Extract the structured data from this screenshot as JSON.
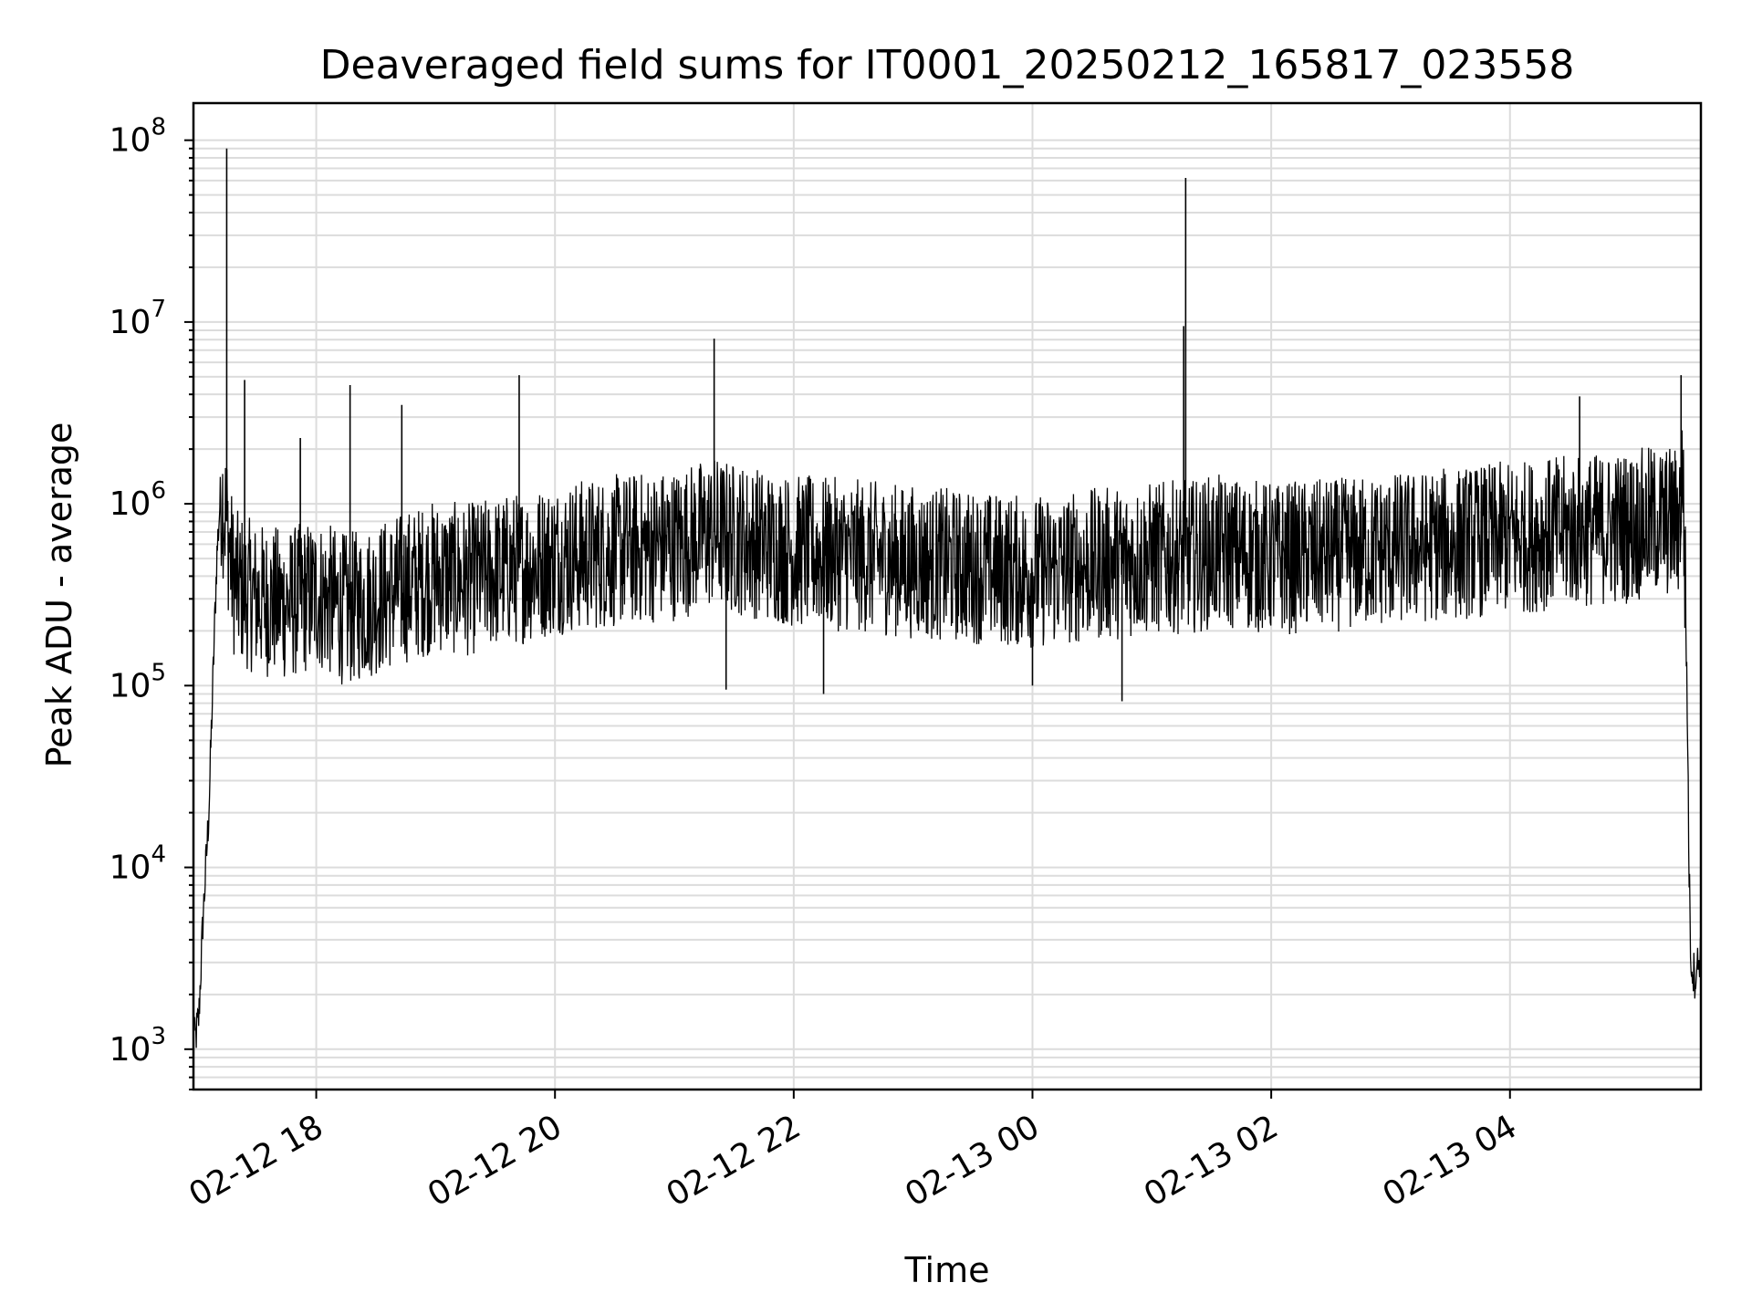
{
  "chart_data": {
    "type": "line",
    "title": "Deaveraged field sums for IT0001_20250212_165817_023558",
    "xlabel": "Time",
    "ylabel": "Peak ADU - average",
    "yscale": "log",
    "ylim": [
      600,
      160000000
    ],
    "xlim": [
      "2025-02-12 16:58:17",
      "2025-02-13 05:35:58"
    ],
    "grid": true,
    "x_ticks": [
      {
        "value": "2025-02-12 18:00",
        "label": "02-12 18"
      },
      {
        "value": "2025-02-12 20:00",
        "label": "02-12 20"
      },
      {
        "value": "2025-02-12 22:00",
        "label": "02-12 22"
      },
      {
        "value": "2025-02-13 00:00",
        "label": "02-13 00"
      },
      {
        "value": "2025-02-13 02:00",
        "label": "02-13 02"
      },
      {
        "value": "2025-02-13 04:00",
        "label": "02-13 04"
      }
    ],
    "y_ticks": [
      {
        "value": 1000,
        "base": "10",
        "exp": "3"
      },
      {
        "value": 10000,
        "base": "10",
        "exp": "4"
      },
      {
        "value": 100000,
        "base": "10",
        "exp": "5"
      },
      {
        "value": 1000000,
        "base": "10",
        "exp": "6"
      },
      {
        "value": 10000000,
        "base": "10",
        "exp": "7"
      },
      {
        "value": 100000000,
        "base": "10",
        "exp": "8"
      }
    ],
    "series": [
      {
        "color": "#000000",
        "x": [
          "2025-02-12 16:58:17",
          "2025-02-12 16:59:00",
          "2025-02-12 17:01:00",
          "2025-02-12 17:03:00",
          "2025-02-12 17:06:00",
          "2025-02-12 17:08:00",
          "2025-02-12 17:10:00",
          "2025-02-12 17:12:00",
          "2025-02-12 17:15:00",
          "2025-02-12 17:18:00",
          "2025-02-12 17:20:00",
          "2025-02-12 17:30:00",
          "2025-02-12 17:45:00",
          "2025-02-12 18:00:00",
          "2025-02-12 18:15:00",
          "2025-02-12 18:30:00",
          "2025-02-12 18:45:00",
          "2025-02-12 19:00:00",
          "2025-02-12 19:15:00",
          "2025-02-12 19:30:00",
          "2025-02-12 19:45:00",
          "2025-02-12 20:00:00",
          "2025-02-12 20:30:00",
          "2025-02-12 21:00:00",
          "2025-02-12 21:20:00",
          "2025-02-12 21:30:00",
          "2025-02-12 21:45:00",
          "2025-02-12 22:00:00",
          "2025-02-12 22:30:00",
          "2025-02-12 23:00:00",
          "2025-02-12 23:30:00",
          "2025-02-13 00:00:00",
          "2025-02-13 00:30:00",
          "2025-02-13 01:00:00",
          "2025-02-13 01:25:00",
          "2025-02-13 01:30:00",
          "2025-02-13 01:45:00",
          "2025-02-13 02:00:00",
          "2025-02-13 02:30:00",
          "2025-02-13 03:00:00",
          "2025-02-13 03:30:00",
          "2025-02-13 04:00:00",
          "2025-02-13 04:30:00",
          "2025-02-13 05:00:00",
          "2025-02-13 05:15:00",
          "2025-02-13 05:25:00",
          "2025-02-13 05:27:00",
          "2025-02-13 05:29:00",
          "2025-02-13 05:30:00",
          "2025-02-13 05:31:00",
          "2025-02-13 05:33:00",
          "2025-02-13 05:35:58"
        ],
        "values": [
          2000,
          1100,
          1500,
          5000,
          20000,
          100000,
          500000,
          1200000,
          800000,
          400000,
          350000,
          300000,
          280000,
          320000,
          260000,
          300000,
          350000,
          400000,
          380000,
          420000,
          450000,
          500000,
          550000,
          600000,
          700000,
          650000,
          600000,
          550000,
          520000,
          480000,
          450000,
          420000,
          460000,
          500000,
          520000,
          550000,
          530000,
          500000,
          520000,
          560000,
          600000,
          650000,
          700000,
          750000,
          800000,
          800000,
          1500000,
          100000,
          10000,
          3000,
          2500,
          3500
        ]
      }
    ],
    "spikes": [
      {
        "x": "2025-02-12 17:15:00",
        "y": 90000000
      },
      {
        "x": "2025-02-12 17:24:00",
        "y": 4800000
      },
      {
        "x": "2025-02-12 17:52:00",
        "y": 2300000
      },
      {
        "x": "2025-02-12 18:17:00",
        "y": 4500000
      },
      {
        "x": "2025-02-12 18:43:00",
        "y": 3500000
      },
      {
        "x": "2025-02-12 19:42:00",
        "y": 5100000
      },
      {
        "x": "2025-02-12 21:20:00",
        "y": 8100000
      },
      {
        "x": "2025-02-13 01:17:00",
        "y": 62000000
      },
      {
        "x": "2025-02-13 01:16:00",
        "y": 9500000
      },
      {
        "x": "2025-02-13 04:35:00",
        "y": 3900000
      },
      {
        "x": "2025-02-13 05:26:00",
        "y": 5100000
      }
    ],
    "dips": [
      {
        "x": "2025-02-12 21:26:00",
        "y": 95000
      },
      {
        "x": "2025-02-12 22:15:00",
        "y": 90000
      },
      {
        "x": "2025-02-13 00:00:00",
        "y": 100000
      },
      {
        "x": "2025-02-13 00:45:00",
        "y": 82000
      }
    ]
  }
}
